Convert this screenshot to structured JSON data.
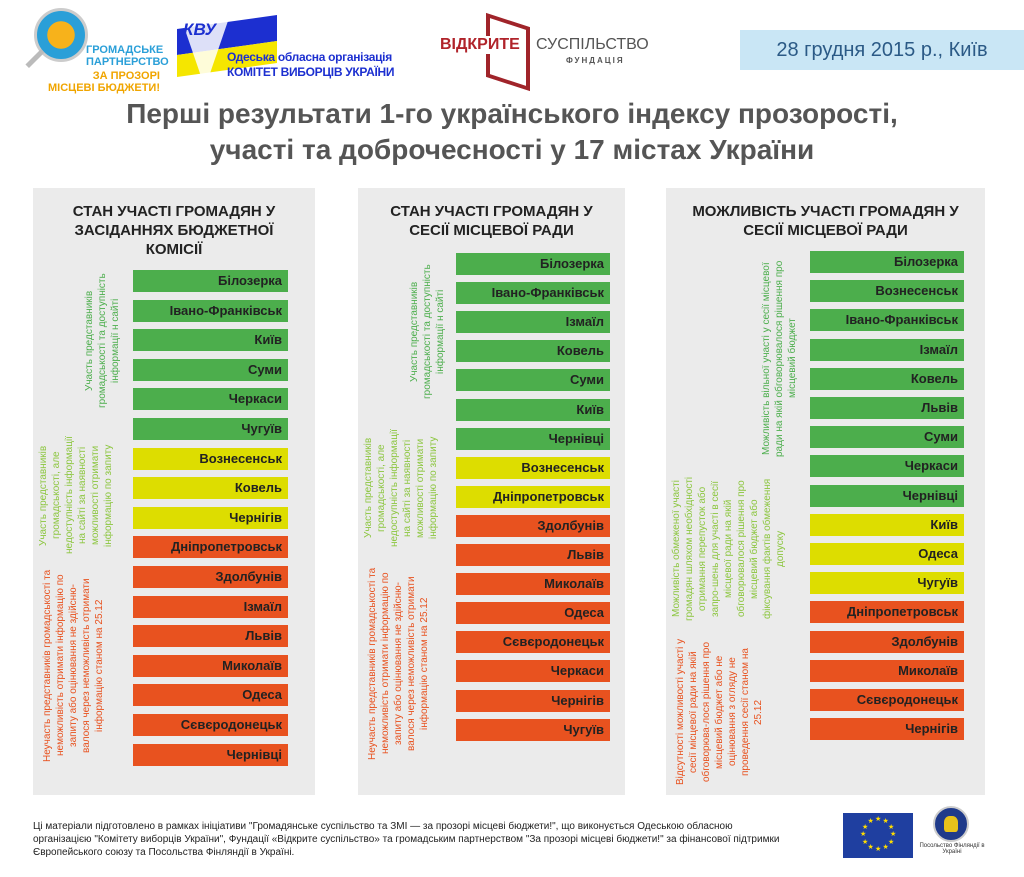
{
  "header": {
    "logo1": [
      "ГРОМАДСЬКЕ",
      "ПАРТНЕРСТВО",
      "ЗА ПРОЗОРІ",
      "МІСЦЕВІ БЮДЖЕТИ!"
    ],
    "logo2": [
      "Одеська обласна організація",
      "КОМІТЕТ ВИБОРЦІВ УКРАЇНИ"
    ],
    "logo2_mark": "КВУ",
    "logo3": [
      "ВІДКРИТЕ",
      "СУСПІЛЬСТВО",
      "ФУНДАЦІЯ"
    ],
    "date": "28 грудня 2015 р., Київ"
  },
  "title": [
    "Перші результати 1-го українського індексу прозорості,",
    "участі  та доброчесності у 17 містах України"
  ],
  "colors": {
    "green": "#4cae4c",
    "yellow": "#dddd00",
    "orange": "#e8521f",
    "greenText": "#4cae4c",
    "yellowText": "#8cc63f",
    "orangeText": "#e8521f"
  },
  "panels": [
    {
      "title": "СТАН УЧАСТІ ГРОМАДЯН У ЗАСІДАННЯХ БЮДЖЕТНОЇ КОМІСІЇ",
      "groups": [
        {
          "status": "green",
          "label": "Участь представників громадськості та доступність інформації н сайті",
          "cities": [
            "Білозерка",
            "Івано-Франківськ",
            "Київ",
            "Суми",
            "Черкаси",
            "Чугуїв"
          ]
        },
        {
          "status": "yellow",
          "label": "Участь представників громадськості, але недоступність інформації на сайті за наявності можливості отримати інформацію по запиту",
          "cities": [
            "Вознесенськ",
            "Ковель",
            "Чернігів"
          ]
        },
        {
          "status": "orange",
          "label": "Неучасть представників громадськості та неможливість отримати інформацію по запиту або оцінювання не здійсню-валося через неможливість отримати інформацію станом на 25.12",
          "cities": [
            "Дніпропетровськ",
            "Здолбунів",
            "Ізмаїл",
            "Львів",
            "Миколаїв",
            "Одеса",
            "Сєвєродонецьк",
            "Чернівці"
          ]
        }
      ]
    },
    {
      "title": "СТАН УЧАСТІ ГРОМАДЯН У СЕСІЇ МІСЦЕВОЇ РАДИ",
      "groups": [
        {
          "status": "green",
          "label": "Участь представників громадськості та доступність інформації н сайті",
          "cities": [
            "Білозерка",
            "Івано-Франківськ",
            "Ізмаїл",
            "Ковель",
            "Суми",
            "Київ",
            "Чернівці"
          ]
        },
        {
          "status": "yellow",
          "label": "Участь представників громадськості, але недоступність інформації на сайті за наявності можливості отримати інформацію по запиту",
          "cities": [
            "Вознесенськ",
            "Дніпропетровськ"
          ]
        },
        {
          "status": "orange",
          "label": "Неучасть представників громадськості та неможливість отримати інформацію по запиту або оцінювання не здійсню-валося через неможливість отримати інформацію станом на 25.12",
          "cities": [
            "Здолбунів",
            "Львів",
            "Миколаїв",
            "Одеса",
            "Сєвєродонецьк",
            "Черкаси",
            "Чернігів",
            "Чугуїв"
          ]
        }
      ]
    },
    {
      "title": "МОЖЛИВІСТЬ УЧАСТІ ГРОМАДЯН У СЕСІЇ МІСЦЕВОЇ РАДИ",
      "groups": [
        {
          "status": "green",
          "label": "Можливість вільної участі  у сесії місцевої ради на якій обговорювалося рішення про місцевий бюджет",
          "cities": [
            "Білозерка",
            "Вознесенськ",
            "Івано-Франківськ",
            "Ізмаїл",
            "Ковель",
            "Львів",
            "Суми",
            "Черкаси",
            "Чернівці"
          ]
        },
        {
          "status": "yellow",
          "label": "Можливість обмеженої участі громадян шляхом необхідності отримання перепусток або запро-шень  для участі в сесії місцевої ради на якій обговорювалося рішення про місцевий бюджет або фіксування фактів обмеження допуску",
          "cities": [
            "Київ",
            "Одеса",
            "Чугуїв"
          ]
        },
        {
          "status": "orange",
          "label": "Відсутності можливості участі у сесії місцевої ради на якій обговорюва-лося рішення про місцевий бюджет або не оцінювання з огляду не проведення сесії станом на 25.12",
          "cities": [
            "Дніпропетровськ",
            "Здолбунів",
            "Миколаїв",
            "Сєвєродонецьк",
            "Чернігів"
          ]
        }
      ]
    }
  ],
  "footer": {
    "text": "Ці матеріали підготовлено в рамках ініціативи \"Громадянське суспільство та ЗМІ — за прозорі місцеві бюджети!\", що виконується Одеською обласною організацією \"Комітету виборців України\", Фундації «Відкрите суспільство» та громадським партнерством \"За прозорі місцеві бюджети!\" за фінансової підтримки Європейського союзу та Посольства Фінляндії в Україні.",
    "finland_seal": "FORMIN.FINLAND.FI",
    "finland_caption": "Посольство Фінляндії в Україні"
  }
}
